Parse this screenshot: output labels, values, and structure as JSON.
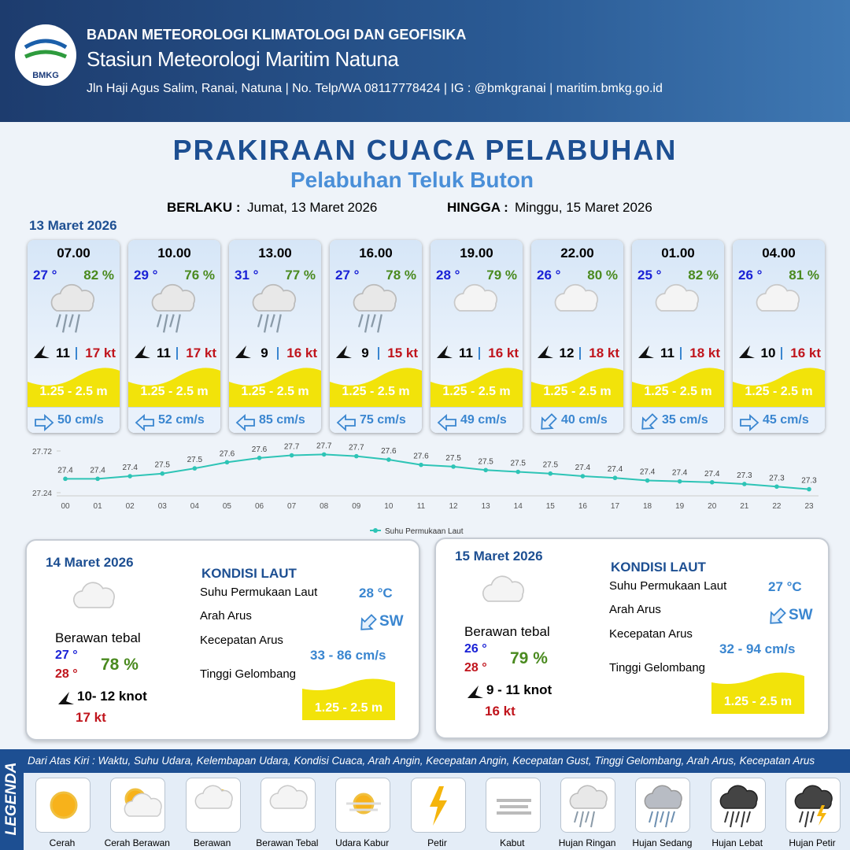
{
  "header": {
    "logo": "BMKG",
    "org": "BADAN METEOROLOGI KLIMATOLOGI DAN GEOFISIKA",
    "station": "Stasiun Meteorologi Maritim Natuna",
    "address": "Jln Haji Agus Salim, Ranai, Natuna  | No. Telp/WA 08117778424 | IG : @bmkgranai | maritim.bmkg.go.id"
  },
  "title": "PRAKIRAAN CUACA PELABUHAN",
  "subtitle": "Pelabuhan Teluk Buton",
  "validity": {
    "from_label": "BERLAKU :",
    "from": "Jumat, 13 Maret 2026",
    "to_label": "HINGGA :",
    "to": "Minggu, 15 Maret 2026"
  },
  "day1_date": "13 Maret 2026",
  "cards": [
    {
      "time": "07.00",
      "temp": "27 °",
      "humidity": "82 %",
      "wind": "11",
      "gust": "17 kt",
      "wave": "1.25 - 2.5 m",
      "current": "50 cm/s"
    },
    {
      "time": "10.00",
      "temp": "29 °",
      "humidity": "76 %",
      "wind": "11",
      "gust": "17 kt",
      "wave": "1.25 - 2.5 m",
      "current": "52 cm/s"
    },
    {
      "time": "13.00",
      "temp": "31 °",
      "humidity": "77 %",
      "wind": "9",
      "gust": "16 kt",
      "wave": "1.25 - 2.5 m",
      "current": "85 cm/s"
    },
    {
      "time": "16.00",
      "temp": "27 °",
      "humidity": "78 %",
      "wind": "9",
      "gust": "15 kt",
      "wave": "1.25 - 2.5 m",
      "current": "75 cm/s"
    },
    {
      "time": "19.00",
      "temp": "28 °",
      "humidity": "79 %",
      "wind": "11",
      "gust": "16 kt",
      "wave": "1.25 - 2.5 m",
      "current": "49 cm/s"
    },
    {
      "time": "22.00",
      "temp": "26 °",
      "humidity": "80 %",
      "wind": "12",
      "gust": "18 kt",
      "wave": "1.25 - 2.5 m",
      "current": "40 cm/s"
    },
    {
      "time": "01.00",
      "temp": "25 °",
      "humidity": "82 %",
      "wind": "11",
      "gust": "18 kt",
      "wave": "1.25 - 2.5 m",
      "current": "35 cm/s"
    },
    {
      "time": "04.00",
      "temp": "26 °",
      "humidity": "81 %",
      "wind": "10",
      "gust": "16 kt",
      "wave": "1.25 - 2.5 m",
      "current": "45 cm/s"
    }
  ],
  "sst_chart": {
    "type": "line",
    "series_name": "Suhu Permukaan Laut",
    "color": "#2ec4b6",
    "categories": [
      "00",
      "01",
      "02",
      "03",
      "04",
      "05",
      "06",
      "07",
      "08",
      "09",
      "10",
      "11",
      "12",
      "13",
      "14",
      "15",
      "16",
      "17",
      "18",
      "19",
      "20",
      "21",
      "22",
      "23"
    ],
    "values": [
      27.4,
      27.4,
      27.43,
      27.46,
      27.52,
      27.59,
      27.64,
      27.67,
      27.68,
      27.66,
      27.62,
      27.56,
      27.54,
      27.5,
      27.48,
      27.46,
      27.43,
      27.41,
      27.38,
      27.37,
      27.36,
      27.34,
      27.31,
      27.28
    ],
    "value_labels": [
      "27.4",
      "27.4",
      "27.4",
      "27.5",
      "27.5",
      "27.6",
      "27.6",
      "27.7",
      "27.7",
      "27.7",
      "27.6",
      "27.6",
      "27.5",
      "27.5",
      "27.5",
      "27.5",
      "27.4",
      "27.4",
      "27.4",
      "27.4",
      "27.4",
      "27.3",
      "27.3",
      "27.3"
    ],
    "ylim": [
      27.24,
      27.72
    ],
    "yticks": [
      27.24,
      27.72
    ]
  },
  "days": [
    {
      "date": "14 Maret 2026",
      "condition": "Berawan tebal",
      "temp_min": "27 °",
      "temp_max": "28 °",
      "humidity": "78 %",
      "wind": "10- 12 knot",
      "gust": "17 kt",
      "sea_title": "KONDISI LAUT",
      "sst_label": "Suhu Permukaan Laut",
      "sst": "28 °C",
      "dir_label": "Arah Arus",
      "dir": "SW",
      "speed_label": "Kecepatan Arus",
      "speed": "33 - 86 cm/s",
      "wave_label": "Tinggi Gelombang",
      "wave": "1.25 - 2.5 m"
    },
    {
      "date": "15 Maret 2026",
      "condition": "Berawan tebal",
      "temp_min": "26 °",
      "temp_max": "28 °",
      "humidity": "79 %",
      "wind": "9  - 11 knot",
      "gust": "16 kt",
      "sea_title": "KONDISI LAUT",
      "sst_label": "Suhu Permukaan Laut",
      "sst": "27 °C",
      "dir_label": "Arah Arus",
      "dir": "SW",
      "speed_label": "Kecepatan Arus",
      "speed": "32 - 94 cm/s",
      "wave_label": "Tinggi Gelombang",
      "wave": "1.25 - 2.5 m"
    }
  ],
  "legend": {
    "title": "LEGENDA",
    "description": "Dari Atas Kiri : Waktu, Suhu Udara, Kelembapan Udara, Kondisi Cuaca, Arah Angin, Kecepatan Angin, Kecepatan Gust, Tinggi Gelombang, Arah Arus, Kecepatan Arus",
    "items": [
      "Cerah",
      "Cerah Berawan",
      "Berawan",
      "Berawan Tebal",
      "Udara Kabur",
      "Petir",
      "Kabut",
      "Hujan Ringan",
      "Hujan Sedang",
      "Hujan Lebat",
      "Hujan Petir"
    ]
  }
}
